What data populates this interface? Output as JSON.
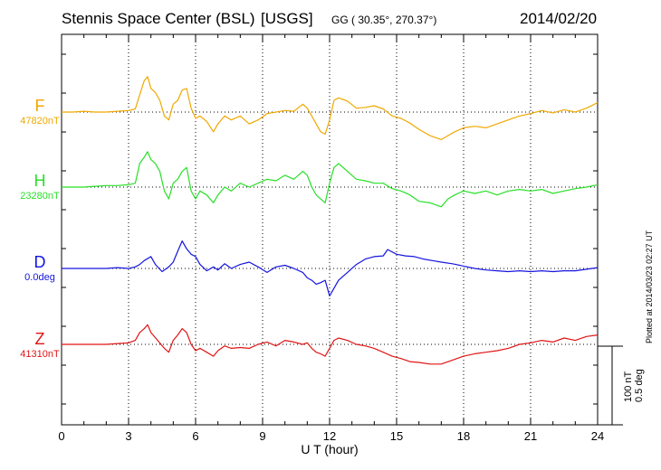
{
  "header": {
    "station": "Stennis Space Center (BSL)",
    "source_tag": "[USGS]",
    "coords": "GG ( 30.35°, 270.37°)",
    "date": "2014/02/20"
  },
  "footer": {
    "plotted": "Plotted at 2014/03/23 02:27  UT",
    "scale_nt": "100 nT",
    "scale_deg": "0.5 deg"
  },
  "chart_data": {
    "type": "line",
    "xlabel": "U T (hour)",
    "xlim": [
      0,
      24
    ],
    "xticks": [
      "0",
      "3",
      "6",
      "9",
      "12",
      "15",
      "18",
      "21",
      "24"
    ],
    "grid": true,
    "scale_bar": "100 nT / 0.5 deg",
    "series": [
      {
        "name": "F",
        "baseline": "47820nT",
        "color": "#f0a800",
        "x": [
          0,
          0.5,
          1,
          1.5,
          2,
          2.5,
          3,
          3.3,
          3.5,
          3.7,
          3.85,
          4,
          4.2,
          4.4,
          4.6,
          4.8,
          5,
          5.2,
          5.4,
          5.6,
          5.8,
          6,
          6.2,
          6.5,
          6.8,
          7,
          7.3,
          7.6,
          8,
          8.4,
          8.8,
          9.2,
          9.6,
          10,
          10.4,
          10.8,
          11,
          11.2,
          11.4,
          11.6,
          11.8,
          12,
          12.2,
          12.4,
          12.8,
          13.2,
          13.6,
          14,
          14.4,
          14.8,
          15.2,
          15.6,
          16,
          16.5,
          17,
          17.3,
          17.6,
          18,
          18.5,
          19,
          19.5,
          20,
          20.5,
          21,
          21.5,
          22,
          22.5,
          23,
          23.5,
          24
        ],
        "y": [
          0,
          0,
          1,
          0,
          0,
          1,
          2,
          4,
          22,
          40,
          45,
          30,
          25,
          15,
          -5,
          -10,
          10,
          15,
          28,
          30,
          5,
          -8,
          -5,
          -12,
          -25,
          -15,
          -5,
          -10,
          -5,
          -15,
          -10,
          -2,
          0,
          2,
          1,
          10,
          5,
          -5,
          -15,
          -25,
          -28,
          -10,
          15,
          18,
          14,
          5,
          6,
          8,
          4,
          -5,
          -8,
          -14,
          -22,
          -30,
          -35,
          -30,
          -25,
          -20,
          -18,
          -20,
          -15,
          -10,
          -5,
          -2,
          2,
          -1,
          3,
          0,
          5,
          12
        ]
      },
      {
        "name": "H",
        "baseline": "23280nT",
        "color": "#28e028",
        "x": [
          0,
          0.5,
          1,
          1.5,
          2,
          2.5,
          3,
          3.3,
          3.5,
          3.7,
          3.85,
          4,
          4.2,
          4.4,
          4.6,
          4.8,
          5,
          5.2,
          5.4,
          5.6,
          5.8,
          6,
          6.2,
          6.5,
          6.8,
          7,
          7.3,
          7.6,
          8,
          8.4,
          8.8,
          9.2,
          9.6,
          10,
          10.4,
          10.8,
          11,
          11.2,
          11.4,
          11.6,
          11.8,
          12,
          12.2,
          12.4,
          12.8,
          13.2,
          13.6,
          14,
          14.4,
          14.8,
          15.2,
          15.6,
          16,
          16.5,
          17,
          17.3,
          17.6,
          18,
          18.5,
          19,
          19.5,
          20,
          20.5,
          21,
          21.5,
          22,
          22.5,
          23,
          23.5,
          24
        ],
        "y": [
          0,
          0,
          0,
          1,
          2,
          2,
          3,
          5,
          30,
          38,
          45,
          35,
          30,
          20,
          -5,
          -15,
          5,
          10,
          20,
          25,
          -5,
          -15,
          -5,
          -10,
          -20,
          -10,
          0,
          -5,
          5,
          0,
          5,
          10,
          8,
          15,
          10,
          20,
          15,
          0,
          -10,
          -15,
          -20,
          5,
          25,
          30,
          20,
          10,
          8,
          5,
          5,
          -2,
          -5,
          -10,
          -18,
          -20,
          -25,
          -15,
          -10,
          -5,
          -8,
          -5,
          -10,
          -5,
          -3,
          -5,
          -3,
          -8,
          -5,
          -2,
          0,
          3
        ]
      },
      {
        "name": "D",
        "baseline": "0.0deg",
        "color": "#1414e0",
        "x": [
          0,
          0.5,
          1,
          1.5,
          2,
          2.5,
          3,
          3.3,
          3.5,
          3.7,
          4,
          4.2,
          4.5,
          4.8,
          5,
          5.2,
          5.4,
          5.6,
          5.8,
          6,
          6.2,
          6.5,
          6.8,
          7,
          7.3,
          7.6,
          8,
          8.4,
          8.8,
          9.2,
          9.6,
          10,
          10.4,
          10.8,
          11,
          11.2,
          11.4,
          11.6,
          11.8,
          12,
          12.2,
          12.4,
          12.8,
          13.2,
          13.6,
          14,
          14.4,
          14.6,
          15,
          15.4,
          15.8,
          16.2,
          16.6,
          17,
          17.5,
          18,
          18.5,
          19,
          19.5,
          20,
          20.5,
          21,
          21.5,
          22,
          22.5,
          23,
          23.5,
          24
        ],
        "y": [
          0,
          0,
          0,
          0,
          0,
          1,
          0,
          2,
          5,
          10,
          15,
          5,
          -4,
          2,
          8,
          22,
          35,
          25,
          18,
          15,
          5,
          -3,
          2,
          -2,
          6,
          0,
          5,
          8,
          2,
          -5,
          2,
          4,
          0,
          -5,
          -12,
          -15,
          -20,
          -18,
          -15,
          -35,
          -25,
          -15,
          -5,
          5,
          12,
          15,
          16,
          24,
          18,
          16,
          15,
          12,
          10,
          8,
          6,
          3,
          0,
          -2,
          -3,
          -4,
          -3,
          -4,
          -3,
          -4,
          -3,
          -3,
          -1,
          1
        ]
      },
      {
        "name": "Z",
        "baseline": "41310nT",
        "color": "#e01414",
        "x": [
          0,
          0.5,
          1,
          1.5,
          2,
          2.5,
          3,
          3.3,
          3.5,
          3.7,
          3.85,
          4,
          4.3,
          4.6,
          4.8,
          5,
          5.2,
          5.4,
          5.6,
          5.8,
          6,
          6.2,
          6.5,
          6.8,
          7,
          7.3,
          7.6,
          8,
          8.4,
          8.8,
          9.2,
          9.6,
          10,
          10.4,
          10.8,
          11,
          11.2,
          11.4,
          11.6,
          11.8,
          12,
          12.2,
          12.4,
          12.8,
          13.2,
          13.6,
          14,
          14.4,
          14.8,
          15.2,
          15.6,
          16,
          16.5,
          17,
          17.5,
          18,
          18.5,
          19,
          19.5,
          20,
          20.5,
          21,
          21.5,
          22,
          22.5,
          23,
          23.5,
          24
        ],
        "y": [
          0,
          0,
          0,
          0,
          0,
          1,
          2,
          5,
          15,
          20,
          25,
          15,
          5,
          -5,
          -10,
          5,
          12,
          20,
          15,
          0,
          -8,
          -5,
          -10,
          -15,
          -8,
          -2,
          -5,
          -4,
          -5,
          0,
          3,
          -2,
          5,
          3,
          0,
          2,
          -5,
          -10,
          -12,
          -15,
          -5,
          5,
          8,
          5,
          0,
          -2,
          -5,
          -10,
          -15,
          -18,
          -22,
          -23,
          -25,
          -25,
          -20,
          -15,
          -12,
          -10,
          -8,
          -5,
          0,
          2,
          5,
          3,
          8,
          5,
          10,
          12
        ]
      }
    ]
  }
}
